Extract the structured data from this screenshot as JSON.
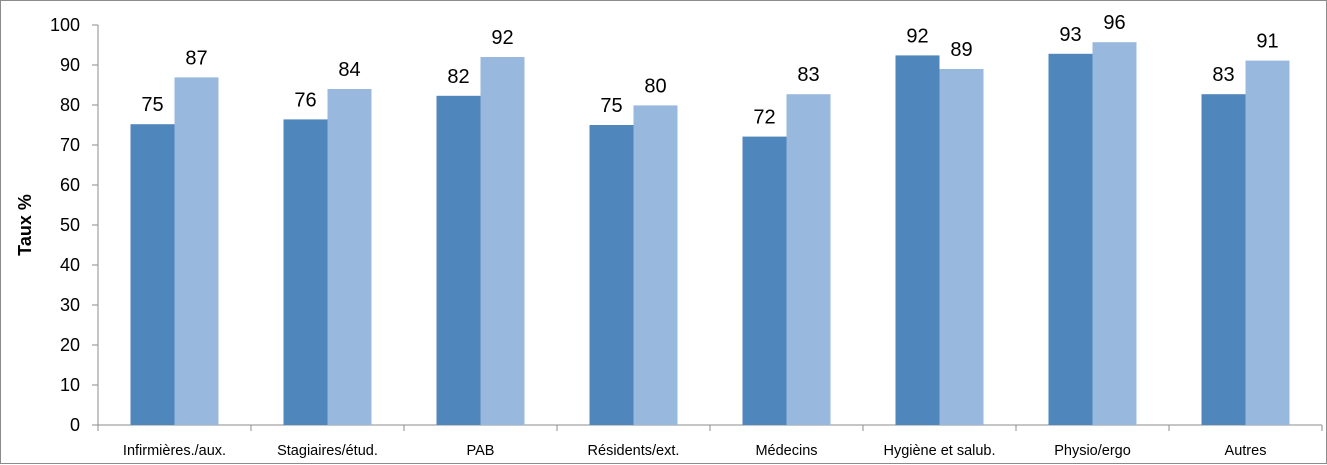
{
  "chart_data": {
    "type": "bar",
    "title": "",
    "xlabel": "",
    "ylabel": "Taux %",
    "ylim": [
      0,
      100
    ],
    "yticks": [
      0,
      10,
      20,
      30,
      40,
      50,
      60,
      70,
      80,
      90,
      100
    ],
    "grid": false,
    "legend": "none",
    "categories": [
      "Infirmières./aux.",
      "Stagiaires/étud.",
      "PAB",
      "Résidents/ext.",
      "Médecins",
      "Hygiène et salub.",
      "Physio/ergo",
      "Autres"
    ],
    "series": [
      {
        "color": "#4f86bc",
        "values": [
          75.2,
          76.4,
          82.3,
          75.0,
          72.1,
          92.4,
          92.8,
          82.7
        ],
        "labels": [
          "75",
          "76",
          "82",
          "75",
          "72",
          "92",
          "93",
          "83"
        ]
      },
      {
        "color": "#98b8de",
        "values": [
          86.9,
          84.0,
          92.0,
          79.9,
          82.7,
          89.0,
          95.7,
          91.1
        ],
        "labels": [
          "87",
          "84",
          "92",
          "80",
          "83",
          "89",
          "96",
          "91"
        ]
      }
    ]
  }
}
